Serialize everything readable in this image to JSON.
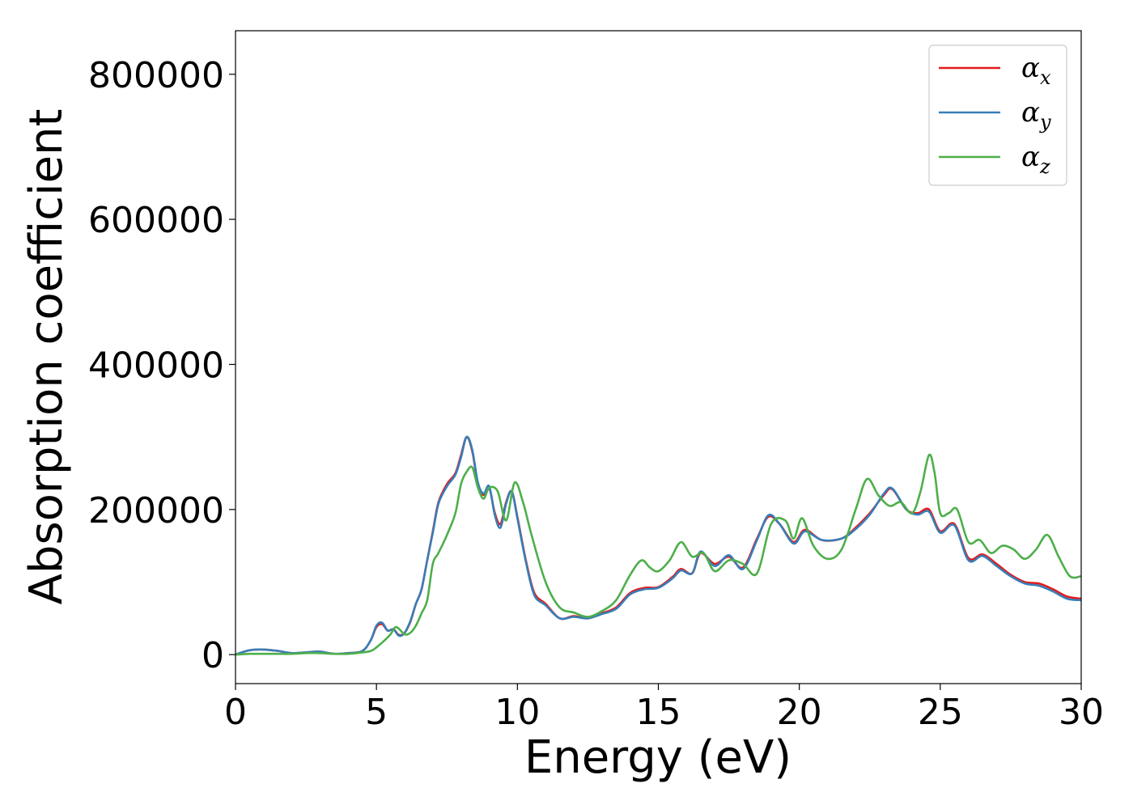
{
  "chart_data": {
    "type": "line",
    "xlabel": "Energy (eV)",
    "ylabel": "Absorption coefficient",
    "xlim": [
      0,
      30
    ],
    "ylim": [
      -40000,
      860000
    ],
    "xticks": [
      0,
      5,
      10,
      15,
      20,
      25,
      30
    ],
    "xtick_labels": [
      "0",
      "5",
      "10",
      "15",
      "20",
      "25",
      "30"
    ],
    "yticks": [
      0,
      200000,
      400000,
      600000,
      800000
    ],
    "ytick_labels": [
      "0",
      "200000",
      "400000",
      "600000",
      "800000"
    ],
    "grid": false,
    "legend_position": "top-right",
    "series": [
      {
        "name": "αx",
        "legend_base": "α",
        "legend_sub": "x",
        "color": "#e41a1c",
        "x": [
          0,
          0.5,
          1.0,
          1.5,
          2.0,
          2.5,
          3.0,
          3.5,
          4.0,
          4.5,
          4.8,
          5.0,
          5.2,
          5.4,
          5.6,
          5.8,
          6.0,
          6.2,
          6.4,
          6.6,
          6.8,
          7.0,
          7.2,
          7.5,
          7.8,
          8.0,
          8.2,
          8.4,
          8.6,
          8.8,
          9.0,
          9.2,
          9.4,
          9.6,
          9.8,
          10.0,
          10.3,
          10.6,
          11.0,
          11.5,
          12.0,
          12.5,
          13.0,
          13.5,
          14.0,
          14.5,
          15.0,
          15.5,
          15.8,
          16.2,
          16.5,
          17.0,
          17.5,
          18.0,
          18.5,
          18.9,
          19.3,
          19.8,
          20.2,
          20.8,
          21.5,
          22.0,
          22.5,
          23.0,
          23.3,
          23.8,
          24.2,
          24.6,
          25.0,
          25.5,
          26.0,
          26.5,
          27.0,
          27.5,
          28.0,
          28.5,
          29.0,
          29.5,
          30.0
        ],
        "y": [
          0,
          6000,
          7000,
          5000,
          2000,
          3000,
          4000,
          1000,
          2000,
          5000,
          20000,
          38000,
          42000,
          33000,
          35000,
          27000,
          30000,
          45000,
          70000,
          90000,
          130000,
          170000,
          210000,
          235000,
          250000,
          275000,
          300000,
          280000,
          235000,
          220000,
          230000,
          195000,
          180000,
          210000,
          225000,
          190000,
          130000,
          85000,
          70000,
          50000,
          53000,
          50000,
          57000,
          65000,
          85000,
          92000,
          93000,
          107000,
          118000,
          112000,
          140000,
          125000,
          135000,
          120000,
          160000,
          190000,
          180000,
          155000,
          172000,
          158000,
          160000,
          175000,
          195000,
          220000,
          228000,
          200000,
          195000,
          200000,
          170000,
          180000,
          133000,
          138000,
          125000,
          110000,
          100000,
          98000,
          90000,
          80000,
          77000
        ]
      },
      {
        "name": "αy",
        "legend_base": "α",
        "legend_sub": "y",
        "color": "#377eb8",
        "x": [
          0,
          0.5,
          1.0,
          1.5,
          2.0,
          2.5,
          3.0,
          3.5,
          4.0,
          4.5,
          4.8,
          5.0,
          5.2,
          5.4,
          5.6,
          5.8,
          6.0,
          6.2,
          6.4,
          6.6,
          6.8,
          7.0,
          7.2,
          7.5,
          7.8,
          8.0,
          8.2,
          8.4,
          8.6,
          8.8,
          9.0,
          9.2,
          9.4,
          9.6,
          9.8,
          10.0,
          10.3,
          10.6,
          11.0,
          11.5,
          12.0,
          12.5,
          13.0,
          13.5,
          14.0,
          14.5,
          15.0,
          15.5,
          15.8,
          16.2,
          16.5,
          17.0,
          17.5,
          18.0,
          18.5,
          18.9,
          19.3,
          19.8,
          20.2,
          20.8,
          21.5,
          22.0,
          22.5,
          23.0,
          23.3,
          23.8,
          24.2,
          24.6,
          25.0,
          25.5,
          26.0,
          26.5,
          27.0,
          27.5,
          28.0,
          28.5,
          29.0,
          29.5,
          30.0
        ],
        "y": [
          0,
          6000,
          7000,
          5000,
          2000,
          3000,
          4000,
          1000,
          2000,
          5000,
          20000,
          40000,
          44000,
          33000,
          35000,
          26000,
          30000,
          46000,
          70000,
          90000,
          130000,
          168000,
          208000,
          232000,
          248000,
          272000,
          300000,
          282000,
          237000,
          222000,
          232000,
          192000,
          175000,
          208000,
          225000,
          188000,
          128000,
          82000,
          68000,
          50000,
          52000,
          50000,
          56000,
          63000,
          83000,
          90000,
          92000,
          105000,
          116000,
          112000,
          142000,
          122000,
          137000,
          118000,
          158000,
          192000,
          180000,
          153000,
          170000,
          158000,
          160000,
          173000,
          193000,
          222000,
          229000,
          200000,
          193000,
          197000,
          168000,
          178000,
          130000,
          136000,
          122000,
          108000,
          98000,
          95000,
          87000,
          77000,
          75000
        ]
      },
      {
        "name": "αz",
        "legend_base": "α",
        "legend_sub": "z",
        "color": "#4daf4a",
        "x": [
          0,
          0.5,
          1.0,
          1.5,
          2.0,
          2.5,
          3.0,
          3.5,
          4.0,
          4.5,
          4.8,
          5.0,
          5.3,
          5.5,
          5.7,
          6.0,
          6.2,
          6.4,
          6.6,
          6.8,
          7.0,
          7.2,
          7.5,
          7.8,
          8.0,
          8.2,
          8.4,
          8.6,
          8.8,
          9.0,
          9.3,
          9.6,
          9.9,
          10.2,
          10.5,
          11.0,
          11.5,
          12.0,
          12.5,
          13.0,
          13.5,
          14.0,
          14.4,
          14.7,
          15.0,
          15.4,
          15.8,
          16.2,
          16.6,
          17.0,
          17.5,
          18.0,
          18.5,
          19.0,
          19.5,
          19.8,
          20.1,
          20.5,
          21.0,
          21.5,
          22.0,
          22.4,
          22.8,
          23.2,
          23.6,
          24.0,
          24.3,
          24.6,
          24.8,
          25.0,
          25.3,
          25.6,
          26.0,
          26.4,
          26.8,
          27.2,
          27.6,
          28.0,
          28.4,
          28.8,
          29.2,
          29.6,
          30.0
        ],
        "y": [
          0,
          1000,
          1000,
          1000,
          1000,
          2000,
          2000,
          1000,
          1000,
          3000,
          5000,
          10000,
          20000,
          28000,
          38000,
          28000,
          30000,
          40000,
          57000,
          75000,
          125000,
          140000,
          165000,
          195000,
          235000,
          252000,
          258000,
          230000,
          215000,
          230000,
          225000,
          185000,
          237000,
          210000,
          165000,
          100000,
          65000,
          58000,
          52000,
          60000,
          75000,
          110000,
          130000,
          120000,
          115000,
          130000,
          155000,
          135000,
          140000,
          115000,
          130000,
          125000,
          112000,
          180000,
          185000,
          160000,
          188000,
          150000,
          132000,
          145000,
          200000,
          242000,
          220000,
          205000,
          210000,
          195000,
          225000,
          275000,
          250000,
          195000,
          195000,
          200000,
          155000,
          158000,
          140000,
          150000,
          145000,
          132000,
          145000,
          165000,
          135000,
          108000,
          108000
        ]
      }
    ]
  }
}
